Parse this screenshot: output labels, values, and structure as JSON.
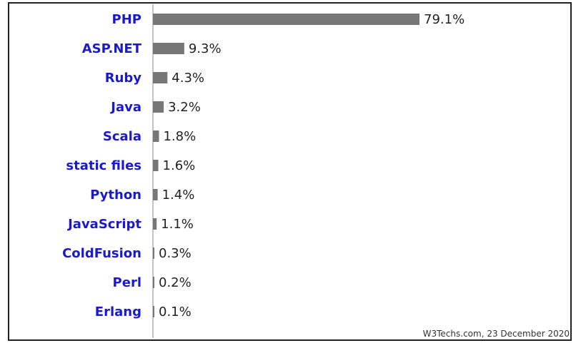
{
  "chart_data": {
    "type": "bar",
    "orientation": "horizontal",
    "categories": [
      "PHP",
      "ASP.NET",
      "Ruby",
      "Java",
      "Scala",
      "static files",
      "Python",
      "JavaScript",
      "ColdFusion",
      "Perl",
      "Erlang"
    ],
    "values": [
      79.1,
      9.3,
      4.3,
      3.2,
      1.8,
      1.6,
      1.4,
      1.1,
      0.3,
      0.2,
      0.1
    ],
    "value_labels": [
      "79.1%",
      "9.3%",
      "4.3%",
      "3.2%",
      "1.8%",
      "1.6%",
      "1.4%",
      "1.1%",
      "0.3%",
      "0.2%",
      "0.1%"
    ],
    "xlim": [
      0,
      100
    ],
    "bar_color": "#777777",
    "label_color": "#1a1acc",
    "grid": false
  },
  "source_note": "W3Techs.com, 23 December 2020"
}
